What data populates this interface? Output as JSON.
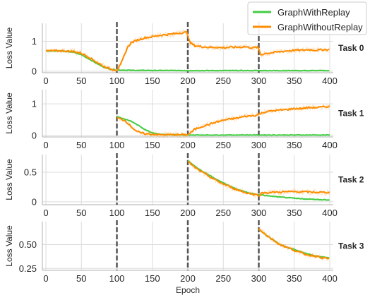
{
  "chart_data": {
    "type": "line",
    "xlabel": "Epoch",
    "xlim": [
      -5,
      405
    ],
    "x_ticks": [
      0,
      50,
      100,
      150,
      200,
      250,
      300,
      350,
      400
    ],
    "task_boundaries": [
      100,
      200,
      300
    ],
    "legend": {
      "placement": "top-right",
      "entries": [
        {
          "name": "GraphWithReplay",
          "color": "#44cc44"
        },
        {
          "name": "GraphWithoutReplay",
          "color": "#ff8c00"
        }
      ]
    },
    "panels": [
      {
        "task": "Task 0",
        "ylabel": "Loss Value",
        "ylim": [
          -0.05,
          1.6
        ],
        "y_ticks": [
          0,
          1
        ],
        "series": [
          {
            "name": "GraphWithReplay",
            "color": "#44cc44",
            "x": [
              0,
              20,
              40,
              50,
              60,
              70,
              80,
              90,
              100,
              120,
              150,
              200,
              250,
              300,
              350,
              400
            ],
            "y": [
              0.68,
              0.68,
              0.63,
              0.55,
              0.42,
              0.28,
              0.15,
              0.07,
              0.04,
              0.03,
              0.025,
              0.02,
              0.02,
              0.02,
              0.02,
              0.02
            ]
          },
          {
            "name": "GraphWithoutReplay",
            "color": "#ff8c00",
            "x": [
              0,
              20,
              40,
              50,
              60,
              70,
              80,
              90,
              100,
              105,
              110,
              115,
              120,
              130,
              140,
              150,
              160,
              170,
              180,
              190,
              199,
              203,
              210,
              220,
              230,
              240,
              250,
              260,
              270,
              280,
              290,
              299,
              303,
              310,
              320,
              330,
              340,
              350,
              360,
              370,
              380,
              390,
              400
            ],
            "y": [
              0.68,
              0.68,
              0.66,
              0.6,
              0.48,
              0.33,
              0.18,
              0.08,
              0.04,
              0.2,
              0.5,
              0.8,
              0.95,
              1.05,
              1.12,
              1.15,
              1.2,
              1.22,
              1.25,
              1.28,
              1.3,
              0.95,
              0.85,
              0.82,
              0.8,
              0.8,
              0.78,
              0.8,
              0.8,
              0.82,
              0.78,
              0.8,
              0.55,
              0.6,
              0.62,
              0.65,
              0.68,
              0.7,
              0.7,
              0.72,
              0.7,
              0.72,
              0.72
            ]
          }
        ]
      },
      {
        "task": "Task 1",
        "ylabel": "Loss Value",
        "ylim": [
          -0.05,
          1.45
        ],
        "y_ticks": [
          0,
          1
        ],
        "series": [
          {
            "name": "GraphWithReplay",
            "color": "#44cc44",
            "x": [
              100,
              110,
              120,
              130,
              140,
              150,
              160,
              170,
              180,
              190,
              200,
              250,
              300,
              350,
              400
            ],
            "y": [
              0.6,
              0.52,
              0.45,
              0.32,
              0.18,
              0.08,
              0.04,
              0.02,
              0.02,
              0.01,
              0.01,
              0.01,
              0.01,
              0.01,
              0.01
            ]
          },
          {
            "name": "GraphWithoutReplay",
            "color": "#ff8c00",
            "x": [
              100,
              105,
              110,
              115,
              120,
              125,
              130,
              140,
              150,
              160,
              170,
              180,
              190,
              200,
              205,
              210,
              220,
              230,
              240,
              250,
              260,
              270,
              280,
              290,
              299,
              303,
              310,
              320,
              330,
              340,
              350,
              360,
              370,
              380,
              390,
              400
            ],
            "y": [
              0.55,
              0.52,
              0.48,
              0.4,
              0.28,
              0.18,
              0.1,
              0.05,
              0.03,
              0.02,
              0.02,
              0.02,
              0.02,
              0.02,
              0.1,
              0.2,
              0.28,
              0.35,
              0.42,
              0.48,
              0.52,
              0.55,
              0.6,
              0.62,
              0.65,
              0.7,
              0.75,
              0.78,
              0.8,
              0.82,
              0.85,
              0.85,
              0.88,
              0.88,
              0.9,
              0.92
            ]
          }
        ]
      },
      {
        "task": "Task 2",
        "ylabel": "Loss Value",
        "ylim": [
          -0.05,
          0.8
        ],
        "y_ticks": [
          0.0,
          0.5
        ],
        "series": [
          {
            "name": "GraphWithReplay",
            "color": "#44cc44",
            "x": [
              200,
              210,
              220,
              230,
              240,
              250,
              260,
              270,
              280,
              290,
              300,
              320,
              340,
              360,
              380,
              400
            ],
            "y": [
              0.7,
              0.6,
              0.52,
              0.45,
              0.38,
              0.32,
              0.26,
              0.21,
              0.17,
              0.14,
              0.12,
              0.09,
              0.07,
              0.05,
              0.04,
              0.03
            ]
          },
          {
            "name": "GraphWithoutReplay",
            "color": "#ff8c00",
            "x": [
              200,
              210,
              220,
              230,
              240,
              250,
              260,
              270,
              280,
              290,
              300,
              305,
              320,
              340,
              360,
              380,
              400
            ],
            "y": [
              0.68,
              0.58,
              0.5,
              0.43,
              0.36,
              0.3,
              0.25,
              0.2,
              0.16,
              0.13,
              0.11,
              0.15,
              0.16,
              0.17,
              0.17,
              0.16,
              0.16
            ]
          }
        ]
      },
      {
        "task": "Task 3",
        "ylabel": "Loss Value",
        "ylim": [
          0.23,
          0.74
        ],
        "y_ticks": [
          0.25,
          0.5
        ],
        "y_tick_labels": [
          "0.25",
          "0.50"
        ],
        "series": [
          {
            "name": "GraphWithReplay",
            "color": "#44cc44",
            "x": [
              300,
              310,
              320,
              330,
              340,
              350,
              360,
              370,
              380,
              390,
              400
            ],
            "y": [
              0.66,
              0.6,
              0.55,
              0.5,
              0.47,
              0.45,
              0.42,
              0.4,
              0.38,
              0.37,
              0.36
            ]
          },
          {
            "name": "GraphWithoutReplay",
            "color": "#ff8c00",
            "x": [
              300,
              310,
              320,
              330,
              340,
              350,
              360,
              370,
              380,
              390,
              400
            ],
            "y": [
              0.67,
              0.6,
              0.55,
              0.5,
              0.47,
              0.44,
              0.41,
              0.39,
              0.38,
              0.36,
              0.35
            ]
          }
        ]
      }
    ]
  }
}
